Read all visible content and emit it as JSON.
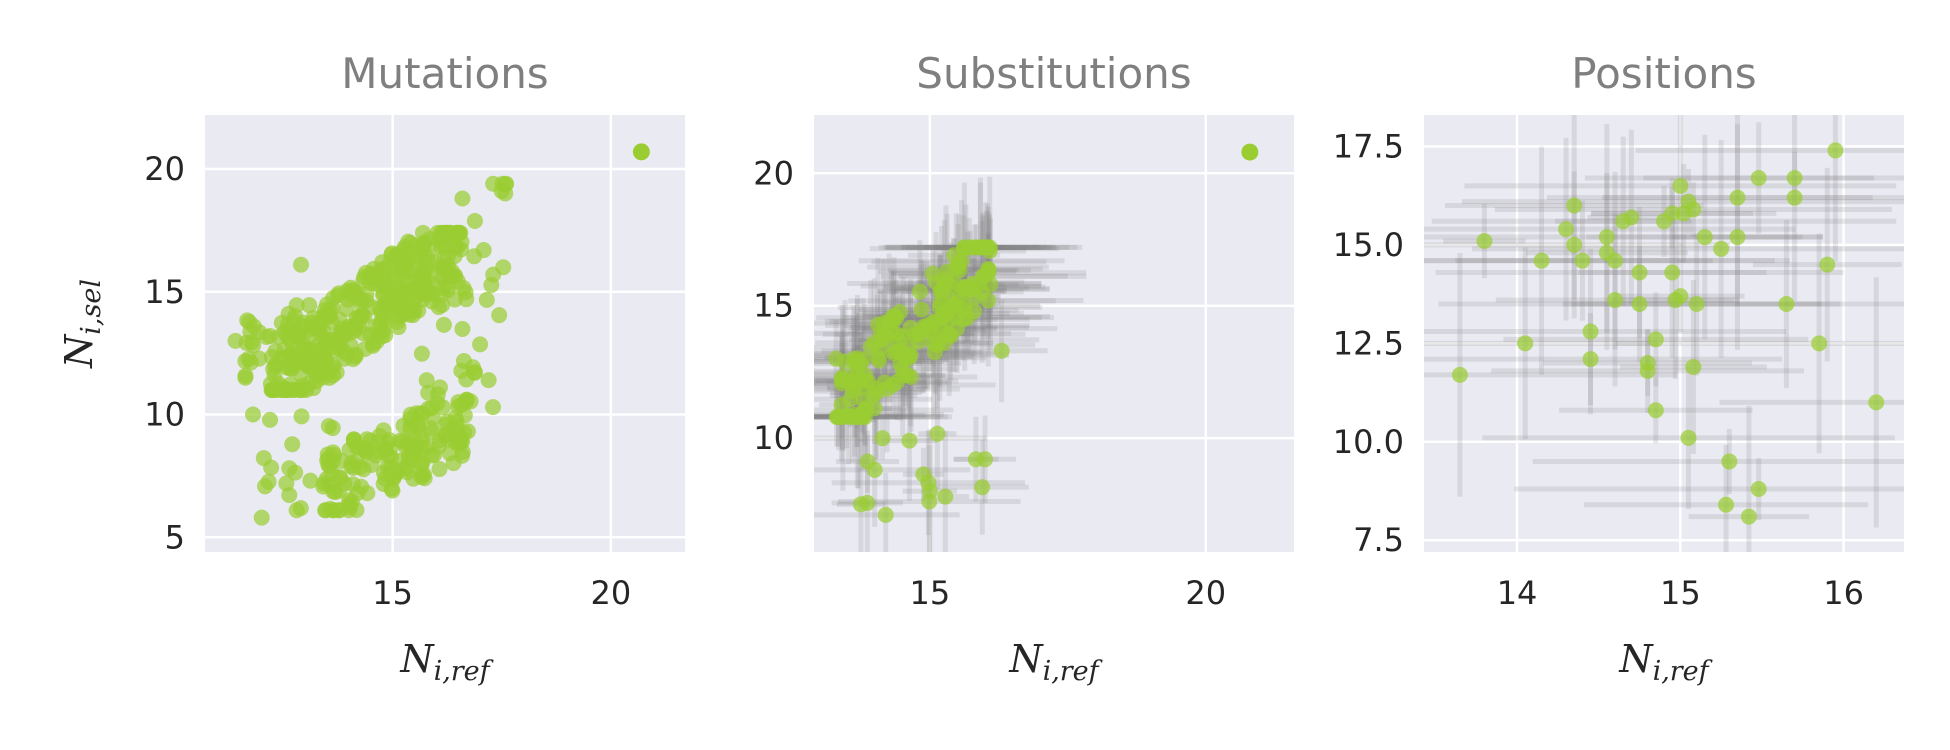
{
  "colors": {
    "point": "#9acd32",
    "errorbar": "#808080",
    "panel_bg": "#eaeaf2",
    "grid": "#ffffff",
    "title": "#7f7f7f",
    "text": "#262626"
  },
  "chart_data": [
    {
      "type": "scatter",
      "title": "Mutations",
      "xlabel": "N_{i,ref}",
      "ylabel": "N_{i,sel}",
      "xlim": [
        10.7,
        21.7
      ],
      "ylim": [
        4.4,
        22.2
      ],
      "xticks": [
        15,
        20
      ],
      "yticks": [
        5,
        10,
        15,
        20
      ],
      "grid": true,
      "error_bars": false,
      "outlier": {
        "x": 20.7,
        "y": 20.7
      },
      "clusters": [
        {
          "x_range": [
            12.2,
            16.6
          ],
          "y_range": [
            11.0,
            17.4
          ],
          "count": 360,
          "trend": 0.9
        },
        {
          "x_range": [
            11.6,
            13.6
          ],
          "y_range": [
            11.5,
            14.8
          ],
          "count": 40,
          "trend": 0.3
        },
        {
          "x_range": [
            13.4,
            16.8
          ],
          "y_range": [
            6.1,
            10.6
          ],
          "count": 150,
          "trend": 0.6
        },
        {
          "x_range": [
            11.9,
            13.7
          ],
          "y_range": [
            5.8,
            10.4
          ],
          "count": 20,
          "trend": 0.0
        },
        {
          "x_range": [
            15.5,
            17.7
          ],
          "y_range": [
            8.0,
            19.4
          ],
          "count": 40,
          "trend": 0.8
        }
      ],
      "points": [
        {
          "x": 12.0,
          "y": 5.8
        },
        {
          "x": 17.6,
          "y": 19.4
        },
        {
          "x": 17.5,
          "y": 19.1
        },
        {
          "x": 11.4,
          "y": 13.0
        },
        {
          "x": 12.9,
          "y": 16.1
        },
        {
          "x": 16.6,
          "y": 18.8
        },
        {
          "x": 17.3,
          "y": 10.3
        },
        {
          "x": 17.2,
          "y": 11.4
        },
        {
          "x": 12.8,
          "y": 6.1
        },
        {
          "x": 11.8,
          "y": 10.0
        }
      ]
    },
    {
      "type": "scatter",
      "title": "Substitutions",
      "xlabel": "N_{i,ref}",
      "ylabel": "",
      "xlim": [
        12.9,
        21.6
      ],
      "ylim": [
        5.7,
        22.2
      ],
      "xticks": [
        15,
        20
      ],
      "yticks": [
        10,
        15,
        20
      ],
      "grid": true,
      "error_bars": true,
      "outlier": {
        "x": 20.8,
        "y": 20.8
      },
      "clusters": [
        {
          "x_range": [
            13.3,
            16.1
          ],
          "y_range": [
            10.8,
            17.2
          ],
          "count": 170,
          "trend": 0.9
        },
        {
          "x_range": [
            13.4,
            16.1
          ],
          "y_range": [
            7.2,
            10.6
          ],
          "count": 12,
          "trend": 0.3
        }
      ],
      "points": [
        {
          "x": 14.2,
          "y": 7.1
        },
        {
          "x": 16.3,
          "y": 13.3
        },
        {
          "x": 16.0,
          "y": 9.2
        },
        {
          "x": 13.3,
          "y": 13.0
        },
        {
          "x": 14.0,
          "y": 8.8
        },
        {
          "x": 15.0,
          "y": 8.0
        }
      ]
    },
    {
      "type": "scatter",
      "title": "Positions",
      "xlabel": "N_{i,ref}",
      "ylabel": "",
      "xlim": [
        13.43,
        16.37
      ],
      "ylim": [
        7.2,
        18.3
      ],
      "xticks": [
        14,
        15,
        16
      ],
      "yticks": [
        7.5,
        10.0,
        12.5,
        15.0,
        17.5
      ],
      "ytick_labels": [
        "7.5",
        "10.0",
        "12.5",
        "15.0",
        "17.5"
      ],
      "grid": true,
      "error_bars": true,
      "points": [
        {
          "x": 13.65,
          "y": 11.7
        },
        {
          "x": 13.8,
          "y": 15.1
        },
        {
          "x": 14.05,
          "y": 12.5
        },
        {
          "x": 14.15,
          "y": 14.6
        },
        {
          "x": 14.3,
          "y": 15.4
        },
        {
          "x": 14.35,
          "y": 16.0
        },
        {
          "x": 14.35,
          "y": 15.0
        },
        {
          "x": 14.4,
          "y": 14.6
        },
        {
          "x": 14.45,
          "y": 12.8
        },
        {
          "x": 14.45,
          "y": 12.1
        },
        {
          "x": 14.55,
          "y": 15.2
        },
        {
          "x": 14.55,
          "y": 14.8
        },
        {
          "x": 14.6,
          "y": 14.6
        },
        {
          "x": 14.6,
          "y": 13.6
        },
        {
          "x": 14.65,
          "y": 15.6
        },
        {
          "x": 14.7,
          "y": 15.7
        },
        {
          "x": 14.75,
          "y": 14.3
        },
        {
          "x": 14.75,
          "y": 13.5
        },
        {
          "x": 14.8,
          "y": 12.0
        },
        {
          "x": 14.8,
          "y": 11.8
        },
        {
          "x": 14.85,
          "y": 12.6
        },
        {
          "x": 14.85,
          "y": 10.8
        },
        {
          "x": 14.9,
          "y": 15.6
        },
        {
          "x": 14.95,
          "y": 15.8
        },
        {
          "x": 14.95,
          "y": 14.3
        },
        {
          "x": 14.97,
          "y": 13.6
        },
        {
          "x": 15.0,
          "y": 16.5
        },
        {
          "x": 15.0,
          "y": 13.7
        },
        {
          "x": 15.02,
          "y": 15.8
        },
        {
          "x": 15.05,
          "y": 16.1
        },
        {
          "x": 15.05,
          "y": 10.1
        },
        {
          "x": 15.08,
          "y": 15.9
        },
        {
          "x": 15.08,
          "y": 11.9
        },
        {
          "x": 15.1,
          "y": 13.5
        },
        {
          "x": 15.15,
          "y": 15.2
        },
        {
          "x": 15.25,
          "y": 14.9
        },
        {
          "x": 15.28,
          "y": 8.4
        },
        {
          "x": 15.3,
          "y": 9.5
        },
        {
          "x": 15.35,
          "y": 15.2
        },
        {
          "x": 15.35,
          "y": 16.2
        },
        {
          "x": 15.42,
          "y": 8.1
        },
        {
          "x": 15.48,
          "y": 16.7
        },
        {
          "x": 15.48,
          "y": 8.8
        },
        {
          "x": 15.65,
          "y": 13.5
        },
        {
          "x": 15.7,
          "y": 16.7
        },
        {
          "x": 15.7,
          "y": 16.2
        },
        {
          "x": 15.85,
          "y": 12.5
        },
        {
          "x": 15.9,
          "y": 14.5
        },
        {
          "x": 15.95,
          "y": 17.4
        },
        {
          "x": 16.2,
          "y": 11.0
        }
      ]
    }
  ]
}
